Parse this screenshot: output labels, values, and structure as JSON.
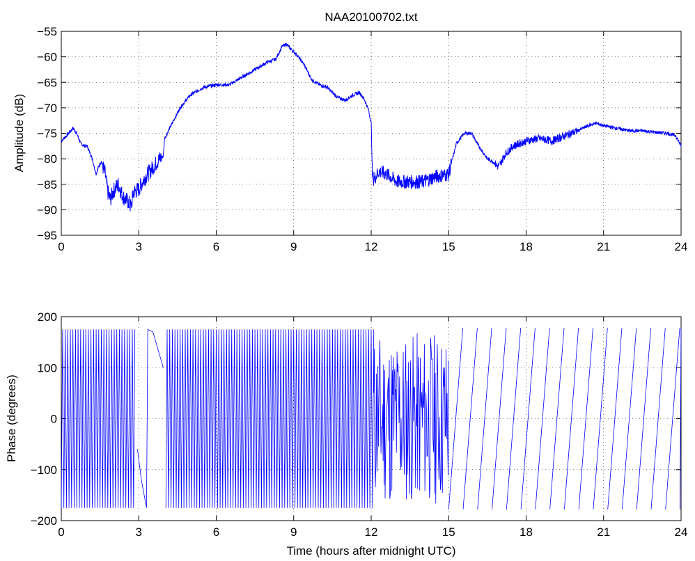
{
  "figure": {
    "background": "#ffffff",
    "line_color": "#0000ff"
  },
  "chart_data": [
    {
      "type": "line",
      "title": "NAA20100702.txt",
      "xlabel": "",
      "ylabel": "Amplitude (dB)",
      "xlim": [
        0,
        24
      ],
      "ylim": [
        -95,
        -55
      ],
      "xticks": [
        0,
        3,
        6,
        9,
        12,
        15,
        18,
        21,
        24
      ],
      "yticks": [
        -95,
        -90,
        -85,
        -80,
        -75,
        -70,
        -65,
        -60,
        -55
      ],
      "xtick_labels": [
        "0",
        "3",
        "6",
        "9",
        "12",
        "15",
        "18",
        "21",
        "24"
      ],
      "ytick_labels": [
        "−95",
        "−90",
        "−85",
        "−80",
        "−75",
        "−70",
        "−65",
        "−60",
        "−55"
      ],
      "grid": true,
      "series": [
        {
          "color": "#0000ff",
          "x": [
            0,
            0.2,
            0.45,
            0.6,
            0.75,
            0.9,
            1.0,
            1.2,
            1.35,
            1.45,
            1.55,
            1.7,
            1.8,
            1.9,
            2.0,
            2.2,
            2.4,
            2.6,
            2.7,
            2.8,
            3.0,
            3.2,
            3.5,
            3.8,
            3.95,
            4.0,
            4.3,
            4.6,
            5.0,
            5.5,
            6.0,
            6.5,
            7.0,
            7.5,
            8.0,
            8.3,
            8.55,
            8.7,
            8.9,
            9.1,
            9.4,
            9.7,
            10.0,
            10.3,
            10.7,
            11.0,
            11.3,
            11.55,
            11.75,
            11.9,
            12.0,
            12.05,
            12.1,
            12.3,
            12.6,
            13.0,
            13.5,
            14.0,
            14.5,
            15.0,
            15.1,
            15.3,
            15.6,
            15.9,
            16.1,
            16.3,
            16.5,
            16.7,
            16.9,
            17.0,
            17.2,
            17.5,
            18.0,
            18.5,
            19.0,
            19.5,
            20.0,
            20.4,
            20.7,
            21.0,
            21.5,
            22.0,
            22.5,
            23.0,
            23.5,
            23.8,
            24.0
          ],
          "y": [
            -76.5,
            -75.5,
            -74.0,
            -75.0,
            -77.0,
            -77.5,
            -77.5,
            -80.0,
            -83.0,
            -81.5,
            -80.5,
            -83.0,
            -86.5,
            -88.0,
            -86.5,
            -85.0,
            -87.5,
            -88.5,
            -89.5,
            -86.5,
            -86.0,
            -84.0,
            -82.0,
            -80.0,
            -79.5,
            -76.0,
            -73.0,
            -70.0,
            -67.5,
            -66.0,
            -65.5,
            -65.5,
            -64.0,
            -62.5,
            -61.0,
            -60.5,
            -58.0,
            -57.5,
            -58.5,
            -59.5,
            -61.5,
            -64.5,
            -65.5,
            -66.0,
            -68.0,
            -68.5,
            -67.5,
            -67.0,
            -68.5,
            -70.5,
            -73.0,
            -83.5,
            -84.0,
            -82.5,
            -83.0,
            -84.5,
            -84.5,
            -84.5,
            -83.5,
            -83.0,
            -81.0,
            -77.0,
            -75.0,
            -75.0,
            -77.0,
            -78.5,
            -80.0,
            -80.5,
            -81.5,
            -81.0,
            -79.0,
            -77.5,
            -76.5,
            -76.0,
            -76.5,
            -75.5,
            -74.5,
            -73.5,
            -73.0,
            -73.5,
            -74.0,
            -74.5,
            -74.5,
            -74.8,
            -75.0,
            -75.5,
            -77.5
          ]
        }
      ]
    },
    {
      "type": "line",
      "title": "",
      "xlabel": "Time (hours after midnight UTC)",
      "ylabel": "Phase (degrees)",
      "xlim": [
        0,
        24
      ],
      "ylim": [
        -200,
        200
      ],
      "xticks": [
        0,
        3,
        6,
        9,
        12,
        15,
        18,
        21,
        24
      ],
      "yticks": [
        -200,
        -100,
        0,
        100,
        200
      ],
      "xtick_labels": [
        "0",
        "3",
        "6",
        "9",
        "12",
        "15",
        "18",
        "21",
        "24"
      ],
      "ytick_labels": [
        "−200",
        "−100",
        "0",
        "100",
        "200"
      ],
      "grid": true,
      "phase_wrap": {
        "fast_cycles_per_hour": 10,
        "fast_segments": [
          [
            0,
            2.9
          ],
          [
            4.05,
            12.1
          ]
        ],
        "slow_start_hour": 15.0,
        "slow_cycle_hours": 0.56
      }
    }
  ]
}
